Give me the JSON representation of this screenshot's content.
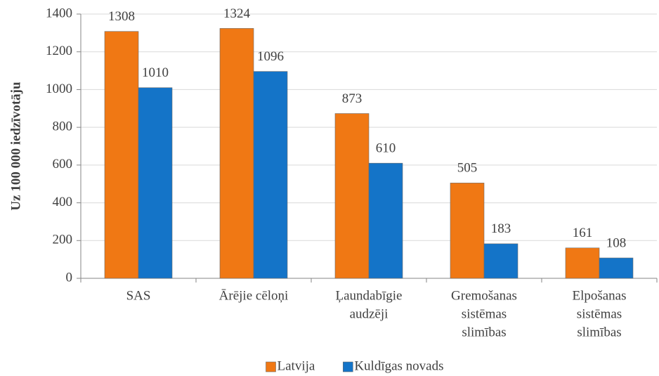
{
  "chart_data": {
    "type": "bar",
    "ylabel": "Uz 100 000 iedzīvotāju",
    "categories": [
      [
        "SAS"
      ],
      [
        "Ārējie cēloņi"
      ],
      [
        "Ļaundabīgie",
        "audzēji"
      ],
      [
        "Gremošanas",
        "sistēmas",
        "slimības"
      ],
      [
        "Elpošanas",
        "sistēmas",
        "slimības"
      ]
    ],
    "series": [
      {
        "name": "Latvija",
        "color": "#f07814",
        "values": [
          1308,
          1324,
          873,
          505,
          161
        ]
      },
      {
        "name": "Kuldīgas novads",
        "color": "#1474c8",
        "values": [
          1010,
          1096,
          610,
          183,
          108
        ]
      }
    ],
    "ylim": [
      0,
      1400
    ],
    "yticks": [
      0,
      200,
      400,
      600,
      800,
      1000,
      1200,
      1400
    ],
    "grid": true,
    "legend": "bottom"
  }
}
